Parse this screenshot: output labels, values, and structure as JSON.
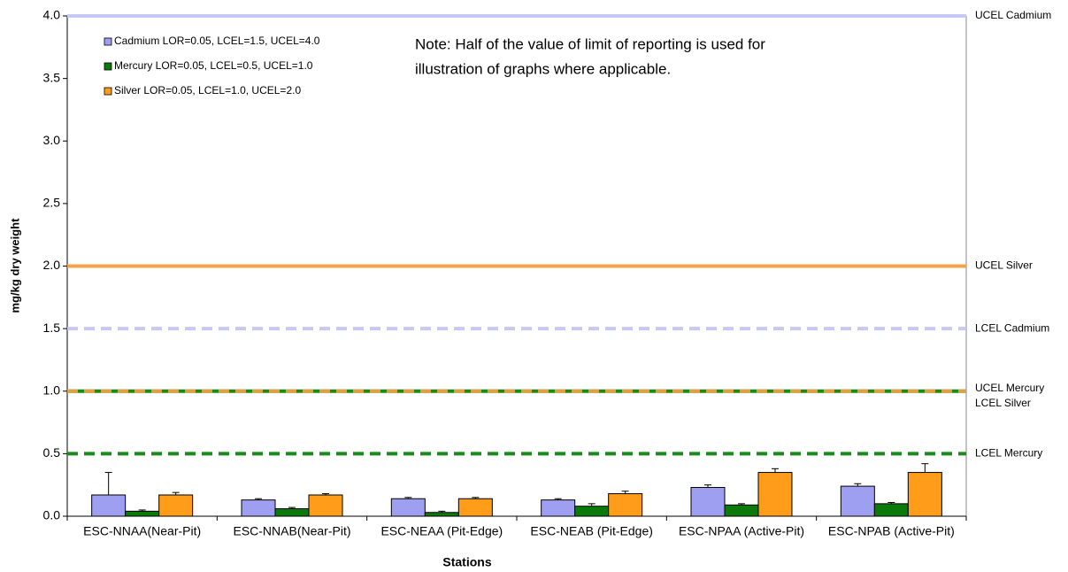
{
  "chart_data": {
    "type": "bar",
    "x_label": "Stations",
    "y_label": "mg/kg dry weight",
    "note": [
      "Note: Half of the value of limit of reporting is used for",
      "illustration of graphs where applicable."
    ],
    "categories": [
      "ESC-NNAA(Near-Pit)",
      "ESC-NNAB(Near-Pit)",
      "ESC-NEAA (Pit-Edge)",
      "ESC-NEAB (Pit-Edge)",
      "ESC-NPAA (Active-Pit)",
      "ESC-NPAB (Active-Pit)"
    ],
    "series": [
      {
        "name": "Cadmium LOR=0.05, LCEL=1.5, UCEL=4.0",
        "color": "#9f9ff2",
        "values": [
          0.17,
          0.13,
          0.14,
          0.13,
          0.23,
          0.24
        ],
        "errors": [
          0.18,
          0.01,
          0.01,
          0.01,
          0.02,
          0.02
        ]
      },
      {
        "name": "Mercury LOR=0.05, LCEL=0.5, UCEL=1.0",
        "color": "#0a7a0a",
        "values": [
          0.04,
          0.06,
          0.03,
          0.08,
          0.09,
          0.1
        ],
        "errors": [
          0.01,
          0.01,
          0.01,
          0.02,
          0.01,
          0.01
        ]
      },
      {
        "name": "Silver LOR=0.05, LCEL=1.0, UCEL=2.0",
        "color": "#ff9c1a",
        "values": [
          0.17,
          0.17,
          0.14,
          0.18,
          0.35,
          0.35
        ],
        "errors": [
          0.02,
          0.01,
          0.01,
          0.02,
          0.03,
          0.07
        ]
      }
    ],
    "reference_lines": [
      {
        "label": "UCEL Cadmium",
        "value": 4.0,
        "color": "#c8c8f8",
        "dashed": false
      },
      {
        "label": "UCEL Silver",
        "value": 2.0,
        "color": "#f7a04a",
        "dashed": false
      },
      {
        "label": "LCEL Cadmium",
        "value": 1.5,
        "color": "#c8c8f8",
        "dashed": true
      },
      {
        "label": "UCEL Mercury",
        "value": 1.0,
        "color": "#1a8a1a",
        "dashed": false
      },
      {
        "label": "LCEL Silver",
        "value": 1.0,
        "color": "#e0a040",
        "dashed": true
      },
      {
        "label": "LCEL Mercury",
        "value": 0.5,
        "color": "#1a8a1a",
        "dashed": true
      }
    ],
    "ylim": [
      0,
      4
    ],
    "yticks": [
      {
        "value": 0,
        "label": "0.0"
      },
      0.5,
      {
        "value": 1,
        "label": "1.0"
      },
      1.5,
      {
        "value": 2,
        "label": "2.0"
      },
      2.5,
      {
        "value": 3,
        "label": "3.0"
      },
      3.5,
      {
        "value": 4,
        "label": "4.0"
      }
    ],
    "grid": false
  }
}
